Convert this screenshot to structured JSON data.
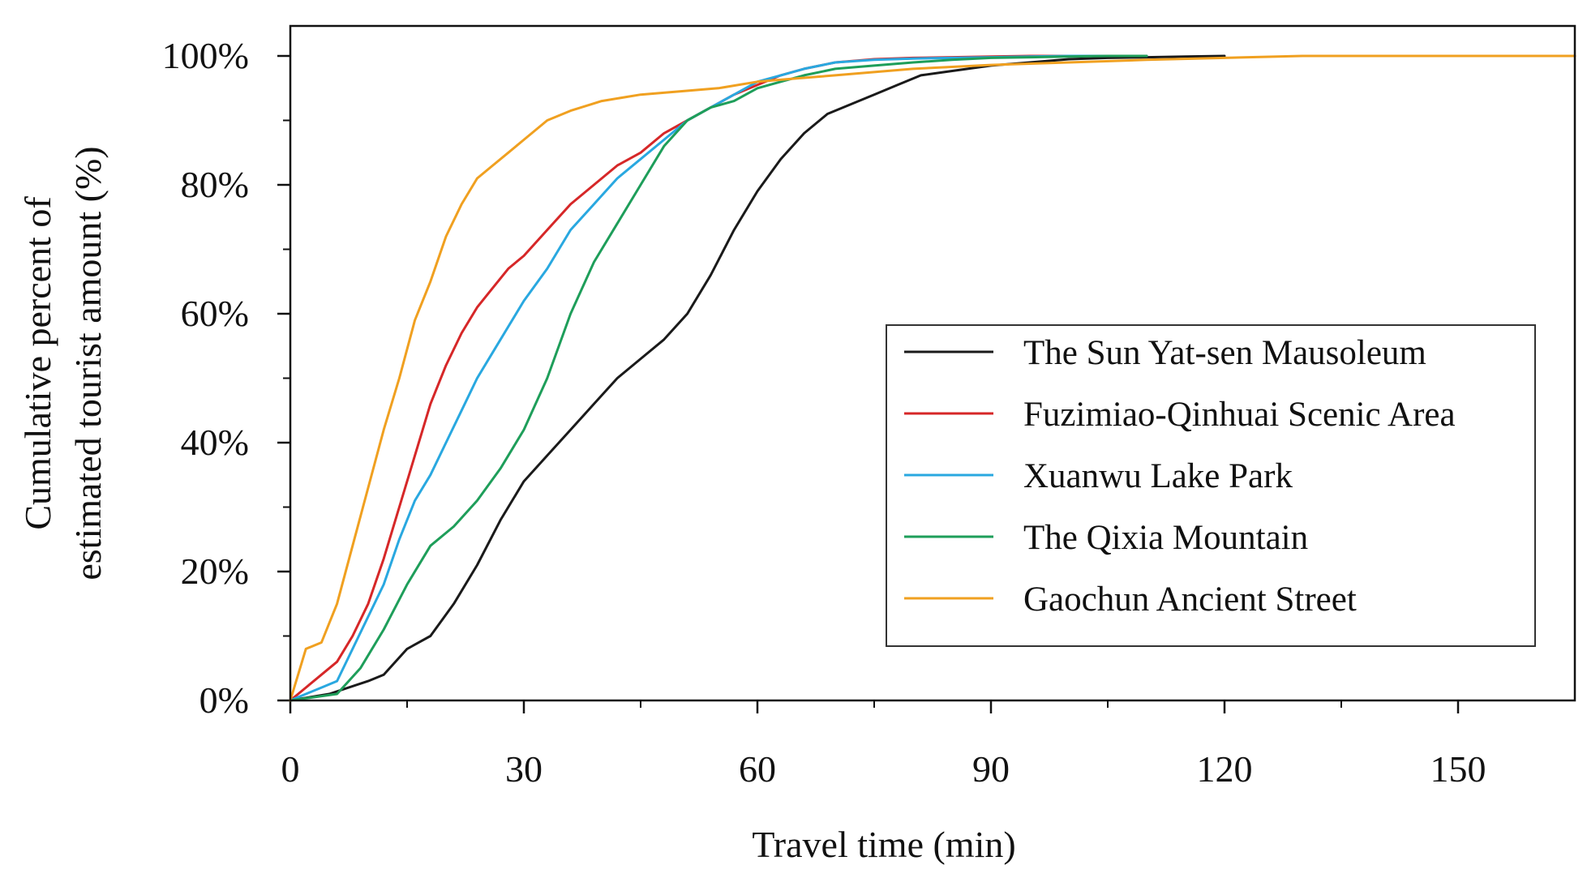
{
  "chart_data": {
    "type": "line",
    "title": "",
    "xlabel": "Travel time (min)",
    "ylabel_lines": [
      "Cumulative percent of",
      "estimated  tourist amount (%)"
    ],
    "xlim": [
      0,
      165
    ],
    "ylim": [
      0,
      100
    ],
    "x_ticks": [
      {
        "value": 0,
        "label": "0"
      },
      {
        "value": 30,
        "label": "30"
      },
      {
        "value": 60,
        "label": "60"
      },
      {
        "value": 90,
        "label": "90"
      },
      {
        "value": 120,
        "label": "120"
      },
      {
        "value": 150,
        "label": "150"
      }
    ],
    "y_ticks": [
      {
        "value": 0,
        "label": "0%"
      },
      {
        "value": 20,
        "label": "20%"
      },
      {
        "value": 40,
        "label": "40%"
      },
      {
        "value": 60,
        "label": "60%"
      },
      {
        "value": 80,
        "label": "80%"
      },
      {
        "value": 100,
        "label": "100%"
      }
    ],
    "x_minor_step": 15,
    "y_minor_step": 10,
    "grid": false,
    "legend_position": "center-right",
    "series": [
      {
        "name": "The Sun Yat-sen Mausoleum",
        "color": "#1a1a1a",
        "x": [
          0,
          5,
          10,
          12,
          15,
          18,
          21,
          24,
          27,
          30,
          33,
          36,
          39,
          42,
          45,
          48,
          51,
          54,
          57,
          60,
          63,
          66,
          69,
          72,
          75,
          78,
          81,
          84,
          87,
          90,
          95,
          100,
          105,
          110,
          115,
          120
        ],
        "y": [
          0,
          1,
          3,
          4,
          8,
          10,
          15,
          21,
          28,
          34,
          38,
          42,
          46,
          50,
          53,
          56,
          60,
          66,
          73,
          79,
          84,
          88,
          91,
          92.5,
          94,
          95.5,
          97,
          97.5,
          98,
          98.5,
          99,
          99.5,
          99.7,
          99.8,
          99.9,
          100
        ]
      },
      {
        "name": "Fuzimiao-Qinhuai Scenic Area",
        "color": "#d62728",
        "x": [
          0,
          2,
          4,
          6,
          8,
          10,
          12,
          14,
          16,
          18,
          20,
          22,
          24,
          26,
          28,
          30,
          33,
          36,
          39,
          42,
          45,
          48,
          51,
          54,
          57,
          60,
          63,
          66,
          70,
          75,
          80,
          85,
          90,
          95,
          100,
          105,
          110
        ],
        "y": [
          0,
          2,
          4,
          6,
          10,
          15,
          22,
          30,
          38,
          46,
          52,
          57,
          61,
          64,
          67,
          69,
          73,
          77,
          80,
          83,
          85,
          88,
          90,
          92,
          94,
          95.5,
          97,
          98,
          99,
          99.5,
          99.7,
          99.8,
          99.9,
          100,
          100,
          100,
          100
        ]
      },
      {
        "name": "Xuanwu Lake Park",
        "color": "#29a8e0",
        "x": [
          0,
          2,
          4,
          6,
          8,
          10,
          12,
          14,
          16,
          18,
          20,
          22,
          24,
          26,
          28,
          30,
          33,
          36,
          39,
          42,
          45,
          48,
          51,
          54,
          57,
          60,
          63,
          66,
          70,
          75,
          80,
          85,
          90,
          95,
          100,
          105,
          110
        ],
        "y": [
          0,
          1,
          2,
          3,
          8,
          13,
          18,
          25,
          31,
          35,
          40,
          45,
          50,
          54,
          58,
          62,
          67,
          73,
          77,
          81,
          84,
          87,
          90,
          92,
          94,
          96,
          97,
          98,
          99,
          99.4,
          99.6,
          99.7,
          99.8,
          99.9,
          100,
          100,
          100
        ]
      },
      {
        "name": "The Qixia Mountain",
        "color": "#1e9e5a",
        "x": [
          0,
          3,
          6,
          9,
          12,
          15,
          18,
          21,
          24,
          27,
          30,
          33,
          36,
          39,
          42,
          45,
          48,
          51,
          54,
          57,
          60,
          63,
          66,
          70,
          75,
          80,
          85,
          90,
          95,
          100,
          105,
          110
        ],
        "y": [
          0,
          0.5,
          1,
          5,
          11,
          18,
          24,
          27,
          31,
          36,
          42,
          50,
          60,
          68,
          74,
          80,
          86,
          90,
          92,
          93,
          95,
          96,
          97,
          98,
          98.5,
          99,
          99.4,
          99.7,
          99.8,
          99.9,
          100,
          100
        ]
      },
      {
        "name": "Gaochun Ancient Street",
        "color": "#f0a020",
        "x": [
          0,
          2,
          4,
          6,
          8,
          10,
          12,
          14,
          16,
          18,
          20,
          22,
          24,
          26,
          28,
          30,
          33,
          36,
          40,
          45,
          50,
          55,
          60,
          65,
          70,
          75,
          80,
          85,
          90,
          100,
          110,
          120,
          130,
          140,
          150,
          165
        ],
        "y": [
          0,
          8,
          9,
          15,
          24,
          33,
          42,
          50,
          59,
          65,
          72,
          77,
          81,
          83,
          85,
          87,
          90,
          91.5,
          93,
          94,
          94.5,
          95,
          96,
          96.5,
          97,
          97.5,
          98,
          98.3,
          98.6,
          99,
          99.4,
          99.7,
          100,
          100,
          100,
          100
        ]
      }
    ]
  }
}
